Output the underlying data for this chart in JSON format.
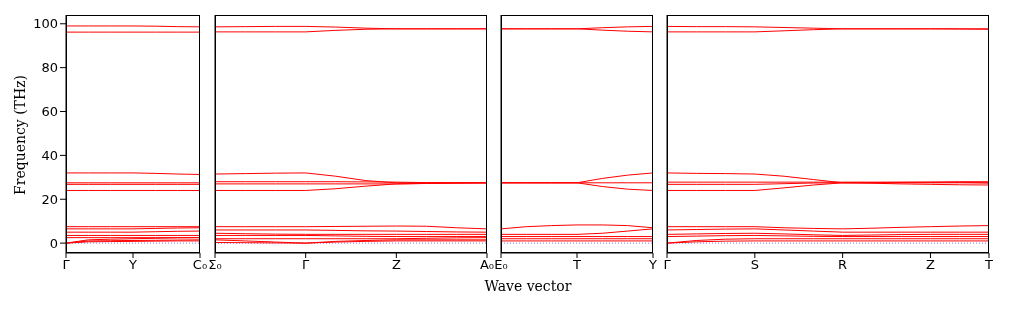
{
  "chart_data": [
    {
      "type": "line",
      "ylabel": "Frequency (THz)",
      "categories": [
        "Γ",
        null,
        null,
        "Y",
        null,
        null,
        "C₀"
      ],
      "ylim": [
        -4.5,
        104
      ],
      "yticks": [
        0,
        20,
        40,
        60,
        80,
        100
      ],
      "ref_lines": [
        {
          "axis": "y",
          "value": 0,
          "color": "#7f7fff",
          "line_style": "dotted"
        }
      ],
      "series": [
        {
          "color": "#ff0000",
          "values": [
            99,
            99,
            99,
            99,
            98.9,
            98.7,
            98.6
          ]
        },
        {
          "color": "#ff0000",
          "values": [
            96.2,
            96.2,
            96.2,
            96.2,
            96.2,
            96.2,
            96.2
          ]
        },
        {
          "color": "#ff0000",
          "values": [
            32,
            32,
            32,
            32,
            31.8,
            31.5,
            31.3
          ]
        },
        {
          "color": "#ff0000",
          "values": [
            27.5,
            27.5,
            27.5,
            27.5,
            27.5,
            27.5,
            27.5
          ]
        },
        {
          "color": "#ff0000",
          "values": [
            26.8,
            26.8,
            26.8,
            26.8,
            26.8,
            26.8,
            26.8
          ]
        },
        {
          "color": "#ff0000",
          "values": [
            24,
            24,
            24,
            24,
            24,
            24,
            24
          ]
        },
        {
          "color": "#ff0000",
          "values": [
            7.5,
            7.5,
            7.5,
            7.5,
            7.5,
            7.5,
            7.5
          ]
        },
        {
          "color": "#ff0000",
          "values": [
            6.5,
            6.5,
            6.5,
            6.5,
            6.7,
            6.9,
            7
          ]
        },
        {
          "color": "#ff0000",
          "values": [
            5,
            5,
            5,
            5,
            5.2,
            5.4,
            5.5
          ]
        },
        {
          "color": "#ff0000",
          "values": [
            3.5,
            3.5,
            3.5,
            3.5,
            3.5,
            3.5,
            3.5
          ]
        },
        {
          "color": "#ff0000",
          "values": [
            2.5,
            2.5,
            2.5,
            2.5,
            2.5,
            2.5,
            2.5
          ]
        },
        {
          "color": "#ff0000",
          "values": [
            0,
            1.5,
            1.8,
            2,
            2.2,
            2.4,
            2.5
          ]
        },
        {
          "color": "#ff0000",
          "values": [
            0,
            1,
            1.1,
            1.2,
            1.3,
            1.4,
            1.5
          ]
        },
        {
          "color": "#ff0000",
          "values": [
            0,
            0.6,
            0.7,
            0.8,
            0.9,
            1,
            1
          ]
        }
      ]
    },
    {
      "type": "line",
      "categories": [
        "Σ₀",
        null,
        null,
        "Γ",
        null,
        null,
        "Z",
        null,
        null,
        "A₀"
      ],
      "ylim": [
        -4.5,
        104
      ],
      "yticks": [
        0,
        20,
        40,
        60,
        80,
        100
      ],
      "tick_labels": "x",
      "ref_lines": [
        {
          "axis": "y",
          "value": 0,
          "color": "#7f7fff",
          "line_style": "dotted"
        }
      ],
      "series": [
        {
          "color": "#ff0000",
          "values": [
            98.6,
            98.7,
            98.8,
            98.8,
            98.5,
            98,
            97.7,
            97.7,
            97.7,
            97.7
          ]
        },
        {
          "color": "#ff0000",
          "values": [
            96.3,
            96.3,
            96.3,
            96.3,
            97,
            97.5,
            97.7,
            97.7,
            97.7,
            97.7
          ]
        },
        {
          "color": "#ff0000",
          "values": [
            31.5,
            31.7,
            31.9,
            32,
            30.5,
            28.5,
            27.5,
            27.5,
            27.5,
            27.5
          ]
        },
        {
          "color": "#ff0000",
          "values": [
            28,
            28,
            28,
            28,
            28,
            27.9,
            27.8,
            27.6,
            27.5,
            27.5
          ]
        },
        {
          "color": "#ff0000",
          "values": [
            27,
            27,
            27,
            27,
            27,
            27,
            27,
            27.2,
            27.4,
            27.5
          ]
        },
        {
          "color": "#ff0000",
          "values": [
            24,
            24,
            24,
            24,
            24.8,
            26,
            27,
            27.2,
            27.4,
            27.5
          ]
        },
        {
          "color": "#ff0000",
          "values": [
            7.5,
            7.5,
            7.5,
            7.5,
            7.6,
            7.7,
            7.8,
            7.7,
            7,
            6.5
          ]
        },
        {
          "color": "#ff0000",
          "values": [
            6,
            6,
            6,
            6,
            5.8,
            5.6,
            5.5,
            5.3,
            5.1,
            5
          ]
        },
        {
          "color": "#ff0000",
          "values": [
            4.5,
            4.3,
            4.1,
            4,
            4,
            4,
            4,
            4,
            4,
            4
          ]
        },
        {
          "color": "#ff0000",
          "values": [
            3.5,
            3.5,
            3.5,
            3.5,
            3.3,
            3.1,
            3,
            3,
            3,
            3
          ]
        },
        {
          "color": "#ff0000",
          "values": [
            2,
            2,
            2,
            2,
            2,
            2,
            2,
            2.2,
            2.4,
            2.5
          ]
        },
        {
          "color": "#ff0000",
          "values": [
            1.5,
            1,
            0.5,
            0,
            0.8,
            1.2,
            1.5,
            1.5,
            1.5,
            1.5
          ]
        },
        {
          "color": "#ff0000",
          "values": [
            0.3,
            0.2,
            0.1,
            0,
            0.5,
            0.8,
            1,
            1,
            1,
            1
          ]
        }
      ]
    },
    {
      "type": "line",
      "xlabel": "Wave vector",
      "categories": [
        "E₀",
        null,
        null,
        "T",
        null,
        null,
        "Y"
      ],
      "ylim": [
        -4.5,
        104
      ],
      "yticks": [
        0,
        20,
        40,
        60,
        80,
        100
      ],
      "tick_labels": "x",
      "ref_lines": [
        {
          "axis": "y",
          "value": 0,
          "color": "#7f7fff",
          "line_style": "dotted"
        }
      ],
      "series": [
        {
          "color": "#ff0000",
          "values": [
            97.7,
            97.7,
            97.7,
            97.7,
            98.2,
            98.6,
            98.8
          ]
        },
        {
          "color": "#ff0000",
          "values": [
            97.7,
            97.7,
            97.7,
            97.7,
            97.1,
            96.6,
            96.3
          ]
        },
        {
          "color": "#ff0000",
          "values": [
            27.5,
            27.5,
            27.5,
            27.5,
            29.5,
            31,
            32
          ]
        },
        {
          "color": "#ff0000",
          "values": [
            27.5,
            27.5,
            27.5,
            27.5,
            27.5,
            27.5,
            27.5
          ]
        },
        {
          "color": "#ff0000",
          "values": [
            27.5,
            27.5,
            27.5,
            27.5,
            25.8,
            24.6,
            24
          ]
        },
        {
          "color": "#ff0000",
          "values": [
            6.5,
            7.5,
            8,
            8.3,
            8.3,
            8,
            7
          ]
        },
        {
          "color": "#ff0000",
          "values": [
            4,
            4,
            4,
            4,
            4.5,
            5.5,
            6.5
          ]
        },
        {
          "color": "#ff0000",
          "values": [
            3,
            3,
            3,
            3,
            3,
            3,
            3
          ]
        },
        {
          "color": "#ff0000",
          "values": [
            2,
            2,
            2,
            2,
            2,
            2,
            2
          ]
        },
        {
          "color": "#ff0000",
          "values": [
            1,
            1,
            1,
            1,
            1,
            1,
            1
          ]
        }
      ]
    },
    {
      "type": "line",
      "categories": [
        "Γ",
        null,
        null,
        "S",
        null,
        null,
        "R",
        null,
        null,
        "Z",
        null,
        "T"
      ],
      "ylim": [
        -4.5,
        104
      ],
      "yticks": [
        0,
        20,
        40,
        60,
        80,
        100
      ],
      "tick_labels": "x",
      "ref_lines": [
        {
          "axis": "y",
          "value": 0,
          "color": "#7f7fff",
          "line_style": "dotted"
        }
      ],
      "series": [
        {
          "color": "#ff0000",
          "values": [
            98.8,
            98.7,
            98.7,
            98.6,
            98.3,
            98,
            97.7,
            97.7,
            97.7,
            97.7,
            97.7,
            97.7
          ]
        },
        {
          "color": "#ff0000",
          "values": [
            96.3,
            96.3,
            96.3,
            96.3,
            96.8,
            97.3,
            97.7,
            97.7,
            97.7,
            97.7,
            97.6,
            97.5
          ]
        },
        {
          "color": "#ff0000",
          "values": [
            32,
            31.8,
            31.7,
            31.5,
            30.5,
            29,
            27.5,
            27.6,
            27.7,
            27.8,
            27.7,
            27.5
          ]
        },
        {
          "color": "#ff0000",
          "values": [
            27.8,
            27.8,
            27.8,
            27.8,
            27.8,
            27.8,
            27.8,
            27.8,
            27.8,
            27.8,
            28,
            28
          ]
        },
        {
          "color": "#ff0000",
          "values": [
            26.8,
            26.8,
            26.8,
            26.8,
            27.1,
            27.4,
            27.5,
            27.3,
            27,
            26.8,
            26.6,
            26.5
          ]
        },
        {
          "color": "#ff0000",
          "values": [
            24,
            24,
            24,
            24,
            25.2,
            26.5,
            27.5,
            27.5,
            27.5,
            27.5,
            27.5,
            27.4
          ]
        },
        {
          "color": "#ff0000",
          "values": [
            7.5,
            7.5,
            7.5,
            7.5,
            7,
            6.7,
            6.5,
            6.8,
            7.2,
            7.5,
            7.8,
            8
          ]
        },
        {
          "color": "#ff0000",
          "values": [
            6,
            6.2,
            6.4,
            6.5,
            6,
            5.5,
            5,
            5,
            5,
            5,
            5,
            5
          ]
        },
        {
          "color": "#ff0000",
          "values": [
            4,
            4.2,
            4.4,
            4.5,
            4.2,
            3.8,
            3.5,
            3.7,
            3.9,
            4,
            4,
            4
          ]
        },
        {
          "color": "#ff0000",
          "values": [
            3,
            3.2,
            3.4,
            3.5,
            3.3,
            3.1,
            3,
            3,
            3,
            3,
            3,
            3
          ]
        },
        {
          "color": "#ff0000",
          "values": [
            0,
            1.2,
            1.8,
            2,
            2,
            2,
            2,
            2,
            2,
            2,
            2,
            2
          ]
        },
        {
          "color": "#ff0000",
          "values": [
            0,
            0.6,
            0.9,
            1,
            1,
            1,
            1,
            1,
            1,
            1,
            1,
            1
          ]
        }
      ]
    }
  ]
}
